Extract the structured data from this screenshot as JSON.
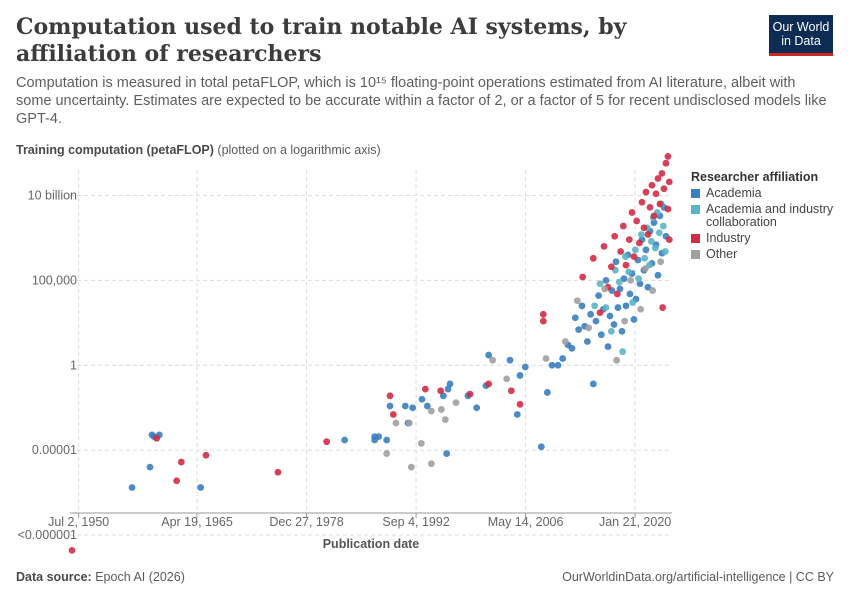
{
  "header": {
    "title": "Computation used to train notable AI systems, by affiliation of researchers",
    "subtitle": "Computation is measured in total petaFLOP, which is 10¹⁵ floating-point operations estimated from AI literature, albeit with some uncertainty. Estimates are expected to be accurate within a factor of 2, or a factor of 5 for recent undisclosed models like GPT-4.",
    "logo_line1": "Our World",
    "logo_line2": "in Data"
  },
  "axis": {
    "y_label_bold": "Training computation (petaFLOP)",
    "y_label_note": "(plotted on a logarithmic axis)",
    "x_label": "Publication date"
  },
  "legend": {
    "title": "Researcher affiliation"
  },
  "footer": {
    "source_label": "Data source:",
    "source_value": "Epoch AI (2026)",
    "link": "OurWorldinData.org/artificial-intelligence | CC BY"
  },
  "chart_data": {
    "type": "scatter",
    "x_scale": "date",
    "y_scale": "log",
    "xlim": [
      "1949-06-01",
      "2024-09-01"
    ],
    "ylim_log10": [
      -8.7,
      11.5
    ],
    "x_ticks": [
      {
        "date": "1950-07-02",
        "label": "Jul 2, 1950"
      },
      {
        "date": "1965-04-19",
        "label": "Apr 19, 1965"
      },
      {
        "date": "1978-12-27",
        "label": "Dec 27, 1978"
      },
      {
        "date": "1992-09-04",
        "label": "Sep 4, 1992"
      },
      {
        "date": "2006-05-14",
        "label": "May 14, 2006"
      },
      {
        "date": "2020-01-21",
        "label": "Jan 21, 2020"
      }
    ],
    "y_ticks": [
      {
        "log10": 10,
        "label": "10 billion"
      },
      {
        "log10": 5,
        "label": "100,000"
      },
      {
        "log10": 0,
        "label": "1"
      },
      {
        "log10": -5,
        "label": "0.00001"
      },
      {
        "log10": -10,
        "label": "<0.000001"
      }
    ],
    "grid": true,
    "legend_position": "right",
    "series": [
      {
        "name": "Academia",
        "color": "#3a7ebf",
        "points": [
          [
            "1957-03-01",
            -7.2
          ],
          [
            "1959-06-01",
            -6.0
          ],
          [
            "1959-09-01",
            -4.1
          ],
          [
            "1959-12-01",
            -4.2
          ],
          [
            "1960-08-01",
            -4.1
          ],
          [
            "1965-10-01",
            -7.2
          ],
          [
            "1983-10-01",
            -4.4
          ],
          [
            "1987-07-01",
            -4.4
          ],
          [
            "1987-07-01",
            -4.2
          ],
          [
            "1988-01-01",
            -4.2
          ],
          [
            "1989-01-01",
            -4.4
          ],
          [
            "1989-06-01",
            -2.4
          ],
          [
            "1991-05-01",
            -2.4
          ],
          [
            "1991-09-01",
            -3.4
          ],
          [
            "1992-04-01",
            -2.5
          ],
          [
            "1993-06-01",
            -2.0
          ],
          [
            "1994-02-01",
            -2.4
          ],
          [
            "1996-02-01",
            -1.8
          ],
          [
            "1996-07-01",
            -5.2
          ],
          [
            "1996-09-01",
            -1.4
          ],
          [
            "1996-12-01",
            -1.1
          ],
          [
            "1999-03-01",
            -1.8
          ],
          [
            "2000-04-01",
            -2.5
          ],
          [
            "2001-06-01",
            -1.2
          ],
          [
            "2001-10-01",
            0.6
          ],
          [
            "2004-06-01",
            0.3
          ],
          [
            "2005-05-01",
            -2.9
          ],
          [
            "2005-09-01",
            -0.6
          ],
          [
            "2006-05-01",
            -0.1
          ],
          [
            "2008-05-01",
            -4.8
          ],
          [
            "2009-02-01",
            -1.6
          ],
          [
            "2009-09-01",
            0.0
          ],
          [
            "2010-06-01",
            0.0
          ],
          [
            "2011-01-01",
            0.4
          ],
          [
            "2011-09-01",
            1.2
          ],
          [
            "2012-03-01",
            1.0
          ],
          [
            "2012-08-01",
            2.8
          ],
          [
            "2013-01-01",
            2.1
          ],
          [
            "2013-06-01",
            3.5
          ],
          [
            "2013-10-01",
            2.3
          ],
          [
            "2014-02-01",
            1.4
          ],
          [
            "2014-07-01",
            3.0
          ],
          [
            "2014-11-01",
            -1.1
          ],
          [
            "2015-03-01",
            2.6
          ],
          [
            "2015-07-01",
            4.1
          ],
          [
            "2015-11-01",
            1.8
          ],
          [
            "2016-02-01",
            3.3
          ],
          [
            "2016-06-01",
            5.0
          ],
          [
            "2016-09-01",
            1.1
          ],
          [
            "2016-12-01",
            2.9
          ],
          [
            "2017-03-01",
            4.4
          ],
          [
            "2017-06-01",
            2.4
          ],
          [
            "2017-09-01",
            6.1
          ],
          [
            "2017-12-01",
            3.4
          ],
          [
            "2018-03-01",
            4.5
          ],
          [
            "2018-06-01",
            2.0
          ],
          [
            "2018-09-01",
            5.1
          ],
          [
            "2018-12-01",
            3.5
          ],
          [
            "2019-03-01",
            6.5
          ],
          [
            "2019-06-01",
            4.2
          ],
          [
            "2019-09-01",
            5.4
          ],
          [
            "2019-12-01",
            2.7
          ],
          [
            "2020-03-01",
            3.9
          ],
          [
            "2020-06-01",
            6.2
          ],
          [
            "2020-09-01",
            4.8
          ],
          [
            "2020-12-01",
            7.4
          ],
          [
            "2021-03-01",
            5.6
          ],
          [
            "2021-06-01",
            6.8
          ],
          [
            "2021-09-01",
            4.6
          ],
          [
            "2021-12-01",
            7.9
          ],
          [
            "2022-03-01",
            6.0
          ],
          [
            "2022-06-01",
            8.4
          ],
          [
            "2022-09-01",
            7.1
          ],
          [
            "2022-12-01",
            5.3
          ],
          [
            "2023-03-01",
            8.8
          ],
          [
            "2023-06-01",
            6.6
          ],
          [
            "2023-09-01",
            9.3
          ],
          [
            "2023-12-01",
            7.6
          ]
        ]
      },
      {
        "name": "Academia and industry collaboration",
        "color": "#5ab4c7",
        "points": [
          [
            "2015-01-01",
            3.5
          ],
          [
            "2015-09-01",
            4.8
          ],
          [
            "2016-06-01",
            3.4
          ],
          [
            "2017-02-01",
            2.0
          ],
          [
            "2017-08-01",
            5.6
          ],
          [
            "2018-02-01",
            4.9
          ],
          [
            "2018-07-01",
            0.8
          ],
          [
            "2018-11-01",
            6.4
          ],
          [
            "2019-04-01",
            5.5
          ],
          [
            "2019-10-01",
            3.7
          ],
          [
            "2020-02-01",
            6.8
          ],
          [
            "2020-07-01",
            5.1
          ],
          [
            "2020-11-01",
            7.7
          ],
          [
            "2021-04-01",
            6.3
          ],
          [
            "2021-08-01",
            8.1
          ],
          [
            "2021-11-01",
            5.9
          ],
          [
            "2022-02-01",
            7.3
          ],
          [
            "2022-05-01",
            8.7
          ],
          [
            "2022-08-01",
            6.9
          ],
          [
            "2022-11-01",
            9.0
          ],
          [
            "2023-02-01",
            7.8
          ],
          [
            "2023-05-01",
            9.5
          ],
          [
            "2023-08-01",
            8.2
          ],
          [
            "2023-11-01",
            6.7
          ]
        ]
      },
      {
        "name": "Industry",
        "color": "#d02c45",
        "points": [
          [
            "1949-09-01",
            -10.9
          ],
          [
            "1960-04-01",
            -4.3
          ],
          [
            "1962-10-01",
            -6.8
          ],
          [
            "1963-05-01",
            -5.7
          ],
          [
            "1966-06-01",
            -5.3
          ],
          [
            "1975-06-01",
            -6.3
          ],
          [
            "1981-07-01",
            -4.5
          ],
          [
            "1989-06-01",
            -1.8
          ],
          [
            "1989-11-01",
            -2.9
          ],
          [
            "1993-11-01",
            -1.4
          ],
          [
            "1995-10-01",
            -1.5
          ],
          [
            "1999-06-01",
            -1.7
          ],
          [
            "2001-10-01",
            -1.1
          ],
          [
            "2004-08-01",
            -1.5
          ],
          [
            "2005-09-01",
            -2.3
          ],
          [
            "2008-08-01",
            3.0
          ],
          [
            "2008-08-01",
            2.6
          ],
          [
            "2013-07-01",
            5.2
          ],
          [
            "2014-11-01",
            6.3
          ],
          [
            "2015-09-01",
            3.1
          ],
          [
            "2016-03-01",
            7.0
          ],
          [
            "2016-09-01",
            4.6
          ],
          [
            "2017-02-01",
            5.8
          ],
          [
            "2017-07-01",
            7.6
          ],
          [
            "2017-11-01",
            4.2
          ],
          [
            "2018-04-01",
            6.7
          ],
          [
            "2018-08-01",
            8.2
          ],
          [
            "2018-12-01",
            5.9
          ],
          [
            "2019-05-01",
            7.4
          ],
          [
            "2019-09-01",
            9.0
          ],
          [
            "2019-12-01",
            6.4
          ],
          [
            "2020-04-01",
            8.5
          ],
          [
            "2020-08-01",
            7.2
          ],
          [
            "2020-12-01",
            9.6
          ],
          [
            "2021-03-01",
            8.1
          ],
          [
            "2021-06-01",
            10.2
          ],
          [
            "2021-09-01",
            7.7
          ],
          [
            "2021-12-01",
            9.3
          ],
          [
            "2022-03-01",
            10.6
          ],
          [
            "2022-06-01",
            8.8
          ],
          [
            "2022-09-01",
            10.1
          ],
          [
            "2022-12-01",
            11.0
          ],
          [
            "2023-03-01",
            9.5
          ],
          [
            "2023-06-01",
            11.3
          ],
          [
            "2023-09-01",
            10.4
          ],
          [
            "2023-12-01",
            11.9
          ],
          [
            "2024-03-01",
            12.3
          ],
          [
            "2024-05-01",
            10.8
          ],
          [
            "2024-03-01",
            9.2
          ],
          [
            "2023-07-01",
            3.4
          ],
          [
            "2024-05-01",
            7.4
          ]
        ]
      },
      {
        "name": "Other",
        "color": "#a19ea0",
        "points": [
          [
            "1989-01-01",
            -5.2
          ],
          [
            "1990-03-01",
            -3.4
          ],
          [
            "1991-11-01",
            -3.4
          ],
          [
            "1992-02-01",
            -6.0
          ],
          [
            "1993-05-01",
            -4.6
          ],
          [
            "1994-08-01",
            -2.7
          ],
          [
            "1994-08-01",
            -5.8
          ],
          [
            "1995-11-01",
            -2.6
          ],
          [
            "1996-05-01",
            -3.2
          ],
          [
            "1997-09-01",
            -2.2
          ],
          [
            "2002-04-01",
            0.3
          ],
          [
            "2004-01-01",
            -0.8
          ],
          [
            "2008-12-01",
            0.4
          ],
          [
            "2011-05-01",
            1.4
          ],
          [
            "2012-11-01",
            3.8
          ],
          [
            "2014-04-01",
            2.2
          ],
          [
            "2016-04-01",
            4.5
          ],
          [
            "2017-10-01",
            0.3
          ],
          [
            "2018-10-01",
            2.6
          ],
          [
            "2019-07-01",
            5.0
          ],
          [
            "2020-10-01",
            3.3
          ],
          [
            "2021-05-01",
            5.7
          ],
          [
            "2022-04-01",
            4.4
          ],
          [
            "2023-04-01",
            6.1
          ]
        ]
      }
    ]
  }
}
